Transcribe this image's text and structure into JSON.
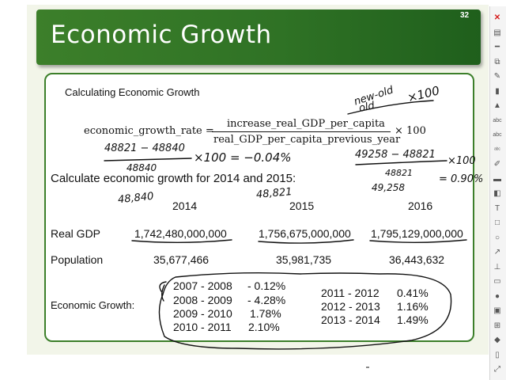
{
  "slide": {
    "title": "Economic Growth",
    "number": "32",
    "subtitle": "Calculating Economic Growth",
    "formula": {
      "lhs": "economic_growth_rate =",
      "numerator": "increase_real_GDP_per_capita",
      "denominator": "real_GDP_per_capita_previous_year",
      "rhs": "× 100"
    },
    "prompt": "Calculate economic growth for 2014 and 2015:",
    "years": [
      "2014",
      "2015",
      "2016"
    ],
    "rows": [
      {
        "label": "Real GDP",
        "values": [
          "1,742,480,000,000",
          "1,756,675,000,000",
          "1,795,129,000,000"
        ]
      },
      {
        "label": "Population",
        "values": [
          "35,677,466",
          "35,981,735",
          "36,443,632"
        ]
      }
    ],
    "growth": {
      "label": "Economic Growth:",
      "left": [
        {
          "period": "2007 - 2008",
          "rate": "- 0.12%"
        },
        {
          "period": "2008 - 2009",
          "rate": "- 4.28%"
        },
        {
          "period": "2009 - 2010",
          "rate": "1.78%"
        },
        {
          "period": "2010 - 2011",
          "rate": "2.10%"
        }
      ],
      "right": [
        {
          "period": "2011 - 2012",
          "rate": "0.41%"
        },
        {
          "period": "2012 - 2013",
          "rate": "1.16%"
        },
        {
          "period": "2013 - 2014",
          "rate": "1.49%"
        }
      ]
    }
  },
  "annotations": {
    "note_new_old": "new-old",
    "note_old": "old",
    "note_x100": "×100",
    "calc1_num": "48821 − 48840",
    "calc1_den": "48840",
    "calc1_result": "×100 = −0.04%",
    "calc2_num": "49258 − 48821",
    "calc2_den": "48821",
    "calc2_x100": "×100",
    "calc2_result": "= 0.90%",
    "gdp_pc_2014": "48,840",
    "gdp_pc_2015": "48,821",
    "gdp_pc_2016": "49,258"
  },
  "toolbar": {
    "icons": [
      "close-icon",
      "print-icon",
      "minus-icon",
      "copy-icon",
      "pen-icon",
      "highlighter-icon",
      "marker-icon",
      "text-style-icon",
      "abc-icon",
      "abc-small-icon",
      "pencil-icon",
      "comment-icon",
      "eraser-icon",
      "text-icon",
      "square-icon",
      "circle-icon",
      "arrow-icon",
      "stamp-icon",
      "ruler-icon",
      "mic-icon",
      "camera-icon",
      "attach-icon",
      "palette-icon",
      "page-icon",
      "fit-icon"
    ],
    "glyphs": [
      "✕",
      "▤",
      "━",
      "⧉",
      "✎",
      "▮",
      "▲",
      "abc",
      "abc",
      "ᵃᵇᶜ",
      "✐",
      "▬",
      "◧",
      "T",
      "□",
      "○",
      "↗",
      "⊥",
      "▭",
      "●",
      "▣",
      "⊞",
      "◆",
      "▯",
      "⤢"
    ],
    "red_index": 0
  }
}
